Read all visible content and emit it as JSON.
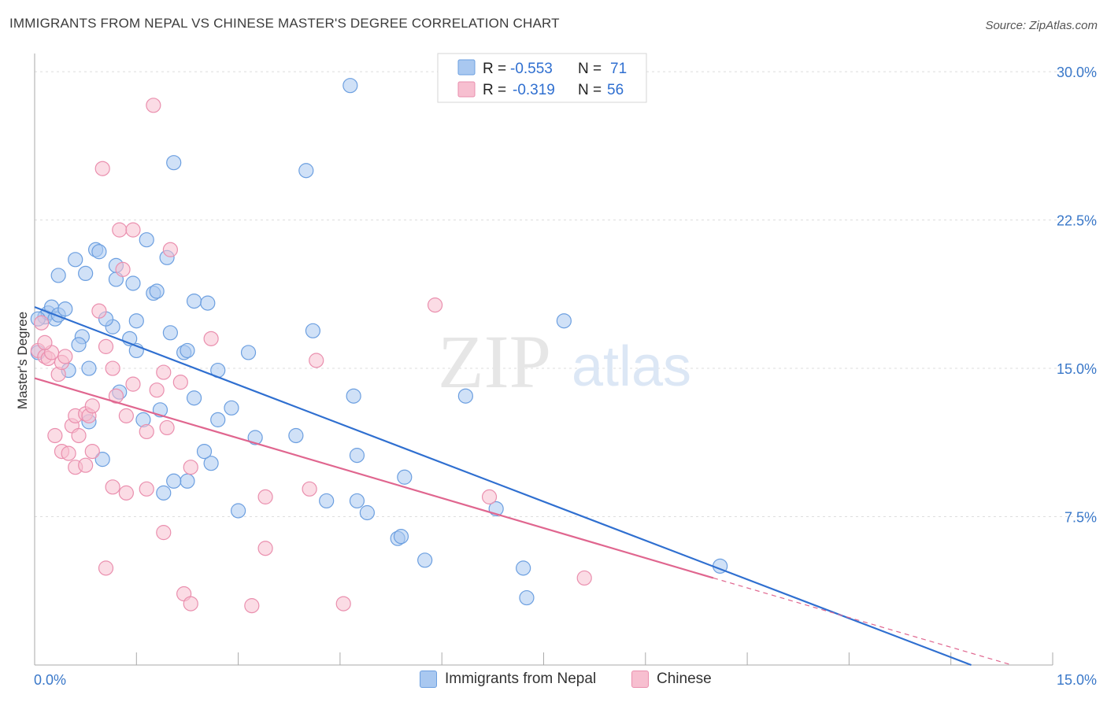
{
  "title": "IMMIGRANTS FROM NEPAL VS CHINESE MASTER'S DEGREE CORRELATION CHART",
  "source": "Source: ZipAtlas.com",
  "watermark": {
    "zip": "ZIP",
    "atlas": "atlas"
  },
  "colors": {
    "nepal_fill": "#a9c8f0",
    "nepal_stroke": "#6c9fe0",
    "nepal_line": "#2f6fd0",
    "chinese_fill": "#f7bfd0",
    "chinese_stroke": "#ea8fae",
    "chinese_line": "#e0668f",
    "grid": "#dddddd",
    "tick": "#3a78c9"
  },
  "legend": {
    "rows": [
      {
        "r_label": "R =",
        "r_value": "-0.553",
        "n_label": "N =",
        "n_value": "71"
      },
      {
        "r_label": "R =",
        "r_value": "-0.319",
        "n_label": "N =",
        "n_value": "56"
      }
    ]
  },
  "bottom_legend": {
    "nepal": "Immigrants from Nepal",
    "chinese": "Chinese"
  },
  "chart_data": {
    "type": "scatter",
    "xlabel": "",
    "ylabel": "Master's Degree",
    "xlim": [
      0,
      15
    ],
    "ylim": [
      0,
      30.6
    ],
    "x_tick_labels": [
      "0.0%",
      "15.0%"
    ],
    "y_ticks": [
      7.5,
      15.0,
      22.5,
      30.0
    ],
    "y_tick_labels": [
      "7.5%",
      "15.0%",
      "22.5%",
      "30.0%"
    ],
    "grid": "horizontal dashed",
    "legend_position": "top-center",
    "series": [
      {
        "name": "Immigrants from Nepal",
        "trend": {
          "x": [
            0,
            13.8
          ],
          "y": [
            18.1,
            0
          ]
        },
        "points": [
          [
            0.05,
            15.8
          ],
          [
            0.15,
            17.6
          ],
          [
            0.2,
            17.8
          ],
          [
            0.25,
            18.1
          ],
          [
            0.3,
            17.5
          ],
          [
            0.35,
            17.7
          ],
          [
            0.45,
            18.0
          ],
          [
            0.35,
            19.7
          ],
          [
            0.6,
            20.5
          ],
          [
            0.75,
            19.8
          ],
          [
            0.9,
            21.0
          ],
          [
            0.95,
            20.9
          ],
          [
            1.2,
            20.2
          ],
          [
            1.2,
            19.5
          ],
          [
            1.45,
            19.3
          ],
          [
            1.65,
            21.5
          ],
          [
            1.75,
            18.8
          ],
          [
            1.8,
            18.9
          ],
          [
            1.95,
            20.6
          ],
          [
            1.5,
            17.4
          ],
          [
            1.15,
            17.1
          ],
          [
            1.05,
            17.5
          ],
          [
            0.7,
            16.6
          ],
          [
            0.65,
            16.2
          ],
          [
            0.8,
            15.0
          ],
          [
            0.5,
            14.9
          ],
          [
            1.4,
            16.5
          ],
          [
            1.5,
            15.9
          ],
          [
            2.0,
            16.8
          ],
          [
            2.2,
            15.8
          ],
          [
            2.25,
            15.9
          ],
          [
            2.35,
            18.4
          ],
          [
            2.55,
            18.3
          ],
          [
            2.7,
            14.9
          ],
          [
            3.15,
            15.8
          ],
          [
            1.25,
            13.8
          ],
          [
            0.8,
            12.3
          ],
          [
            1.6,
            12.4
          ],
          [
            1.85,
            12.9
          ],
          [
            2.35,
            13.5
          ],
          [
            2.7,
            12.4
          ],
          [
            2.9,
            13.0
          ],
          [
            3.25,
            11.5
          ],
          [
            3.85,
            11.6
          ],
          [
            4.1,
            16.9
          ],
          [
            4.7,
            13.6
          ],
          [
            4.75,
            10.6
          ],
          [
            2.6,
            10.2
          ],
          [
            2.5,
            10.8
          ],
          [
            2.25,
            9.3
          ],
          [
            2.05,
            9.3
          ],
          [
            1.9,
            8.7
          ],
          [
            3.0,
            7.8
          ],
          [
            4.3,
            8.3
          ],
          [
            4.75,
            8.3
          ],
          [
            4.9,
            7.7
          ],
          [
            5.35,
            6.4
          ],
          [
            5.4,
            6.5
          ],
          [
            5.45,
            9.5
          ],
          [
            5.75,
            5.3
          ],
          [
            6.35,
            13.6
          ],
          [
            6.8,
            7.9
          ],
          [
            7.2,
            4.9
          ],
          [
            7.25,
            3.4
          ],
          [
            7.8,
            17.4
          ],
          [
            10.1,
            5.0
          ],
          [
            4.65,
            29.3
          ],
          [
            2.05,
            25.4
          ],
          [
            4.0,
            25.0
          ],
          [
            1.0,
            10.4
          ],
          [
            0.05,
            17.5
          ]
        ]
      },
      {
        "name": "Chinese",
        "trend": {
          "x": [
            0,
            10.0,
            14.4
          ],
          "y": [
            14.5,
            4.4,
            0
          ]
        },
        "points": [
          [
            0.05,
            15.9
          ],
          [
            0.1,
            17.3
          ],
          [
            0.15,
            15.6
          ],
          [
            0.2,
            15.5
          ],
          [
            0.25,
            15.8
          ],
          [
            0.35,
            14.7
          ],
          [
            0.55,
            12.1
          ],
          [
            0.6,
            12.6
          ],
          [
            0.65,
            11.6
          ],
          [
            0.75,
            12.7
          ],
          [
            0.8,
            12.6
          ],
          [
            0.85,
            13.1
          ],
          [
            0.3,
            11.6
          ],
          [
            0.4,
            10.8
          ],
          [
            0.5,
            10.7
          ],
          [
            0.6,
            10.0
          ],
          [
            0.75,
            10.1
          ],
          [
            0.85,
            10.8
          ],
          [
            0.95,
            17.9
          ],
          [
            1.05,
            16.1
          ],
          [
            1.15,
            15.0
          ],
          [
            1.2,
            13.6
          ],
          [
            1.35,
            12.6
          ],
          [
            1.45,
            14.2
          ],
          [
            1.65,
            11.8
          ],
          [
            1.8,
            13.9
          ],
          [
            1.9,
            14.8
          ],
          [
            1.95,
            12.0
          ],
          [
            2.15,
            14.3
          ],
          [
            1.15,
            9.0
          ],
          [
            1.35,
            8.7
          ],
          [
            1.65,
            8.9
          ],
          [
            2.3,
            10.0
          ],
          [
            2.6,
            16.5
          ],
          [
            3.4,
            8.5
          ],
          [
            4.05,
            8.9
          ],
          [
            4.15,
            15.4
          ],
          [
            1.25,
            22.0
          ],
          [
            1.45,
            22.0
          ],
          [
            2.0,
            21.0
          ],
          [
            1.3,
            20.0
          ],
          [
            1.0,
            25.1
          ],
          [
            1.75,
            28.3
          ],
          [
            1.9,
            6.7
          ],
          [
            3.4,
            5.9
          ],
          [
            1.05,
            4.9
          ],
          [
            2.2,
            3.6
          ],
          [
            2.3,
            3.1
          ],
          [
            3.2,
            3.0
          ],
          [
            4.55,
            3.1
          ],
          [
            6.7,
            8.5
          ],
          [
            8.1,
            4.4
          ],
          [
            5.9,
            18.2
          ],
          [
            0.4,
            15.3
          ],
          [
            0.15,
            16.3
          ],
          [
            0.45,
            15.6
          ]
        ]
      }
    ]
  }
}
